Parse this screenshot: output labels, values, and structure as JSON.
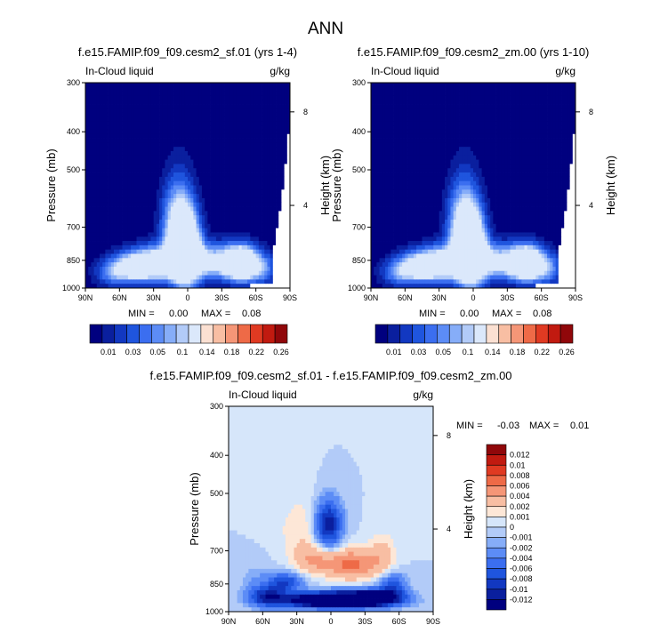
{
  "figure": {
    "main_title": "ANN"
  },
  "colors": {
    "abs_scale": [
      "#00007f",
      "#0a1f9e",
      "#1238c1",
      "#1f55de",
      "#3b6ef0",
      "#5c8cf6",
      "#86adf8",
      "#b2cbf8",
      "#dbe8fb",
      "#fbe0d2",
      "#f8bea3",
      "#f59677",
      "#ee6a47",
      "#e03a22",
      "#c11a10",
      "#90070a"
    ],
    "diff_scale": [
      "#00007f",
      "#0a1f9e",
      "#1238c1",
      "#1f55de",
      "#3b6ef0",
      "#5c8cf6",
      "#86adf8",
      "#b2cbf8",
      "#d6e6fa",
      "#fde7d7",
      "#f8bea3",
      "#f59677",
      "#ee6a47",
      "#e03a22",
      "#c11a10",
      "#90070a"
    ]
  },
  "chart_data": [
    {
      "type": "heatmap",
      "panel": "top-left",
      "title": "f.e15.FAMIP.f09_f09.cesm2_sf.01 (yrs 1-4)",
      "left_label": "In-Cloud liquid",
      "right_label": "g/kg",
      "xlabel": "",
      "ylabel": "Pressure (mb)",
      "right_axis_label": "Height (km)",
      "x_ticks": [
        "90N",
        "60N",
        "30N",
        "0",
        "30S",
        "60S",
        "90S"
      ],
      "y_ticks": [
        "300",
        "400",
        "500",
        "700",
        "850",
        "1000"
      ],
      "right_ticks": [
        "8",
        "4"
      ],
      "x_range": [
        90,
        -90
      ],
      "y_range_mb": [
        300,
        1000
      ],
      "min": 0.0,
      "max": 0.08,
      "min_label": "MIN =",
      "min_value": "0.00",
      "max_label": "MAX =",
      "max_value": "0.08",
      "colorbar_labels": [
        "0.01",
        "0.03",
        "0.05",
        "0.1",
        "0.14",
        "0.18",
        "0.22",
        "0.26"
      ],
      "features": [
        {
          "lat": 0,
          "p_mb": 800,
          "value": 0.08
        },
        {
          "lat": -45,
          "p_mb": 870,
          "value": 0.07
        },
        {
          "lat": 45,
          "p_mb": 880,
          "value": 0.06
        }
      ]
    },
    {
      "type": "heatmap",
      "panel": "top-right",
      "title": "f.e15.FAMIP.f09_f09.cesm2_zm.00 (yrs 1-10)",
      "left_label": "In-Cloud liquid",
      "right_label": "g/kg",
      "xlabel": "",
      "ylabel": "Pressure (mb)",
      "right_axis_label": "Height (km)",
      "x_ticks": [
        "90N",
        "60N",
        "30N",
        "0",
        "30S",
        "60S",
        "90S"
      ],
      "y_ticks": [
        "300",
        "400",
        "500",
        "700",
        "850",
        "1000"
      ],
      "right_ticks": [
        "8",
        "4"
      ],
      "x_range": [
        90,
        -90
      ],
      "y_range_mb": [
        300,
        1000
      ],
      "min": 0.0,
      "max": 0.08,
      "min_label": "MIN =",
      "min_value": "0.00",
      "max_label": "MAX =",
      "max_value": "0.08",
      "colorbar_labels": [
        "0.01",
        "0.03",
        "0.05",
        "0.1",
        "0.14",
        "0.18",
        "0.22",
        "0.26"
      ],
      "features": [
        {
          "lat": 0,
          "p_mb": 800,
          "value": 0.08
        },
        {
          "lat": -45,
          "p_mb": 870,
          "value": 0.07
        },
        {
          "lat": 45,
          "p_mb": 880,
          "value": 0.06
        }
      ]
    },
    {
      "type": "heatmap",
      "panel": "bottom-difference",
      "title": "f.e15.FAMIP.f09_f09.cesm2_sf.01 - f.e15.FAMIP.f09_f09.cesm2_zm.00",
      "left_label": "In-Cloud liquid",
      "right_label": "g/kg",
      "xlabel": "",
      "ylabel": "Pressure (mb)",
      "right_axis_label": "Height (km)",
      "x_ticks": [
        "90N",
        "60N",
        "30N",
        "0",
        "30S",
        "60S",
        "90S"
      ],
      "y_ticks": [
        "300",
        "400",
        "500",
        "700",
        "850",
        "1000"
      ],
      "right_ticks": [
        "8",
        "4"
      ],
      "x_range": [
        90,
        -90
      ],
      "y_range_mb": [
        300,
        1000
      ],
      "min": -0.03,
      "max": 0.01,
      "min_label": "MIN =",
      "min_value": "-0.03",
      "max_label": "MAX =",
      "max_value": "0.01",
      "colorbar_labels": [
        "0.012",
        "0.01",
        "0.008",
        "0.006",
        "0.004",
        "0.002",
        "0.001",
        "0",
        "-0.001",
        "-0.002",
        "-0.004",
        "-0.006",
        "-0.008",
        "-0.01",
        "-0.012"
      ],
      "features": [
        {
          "lat": 0,
          "p_mb": 600,
          "value": -0.012
        },
        {
          "lat": 0,
          "p_mb": 930,
          "value": -0.03
        },
        {
          "lat": -20,
          "p_mb": 760,
          "value": 0.006
        }
      ]
    }
  ]
}
